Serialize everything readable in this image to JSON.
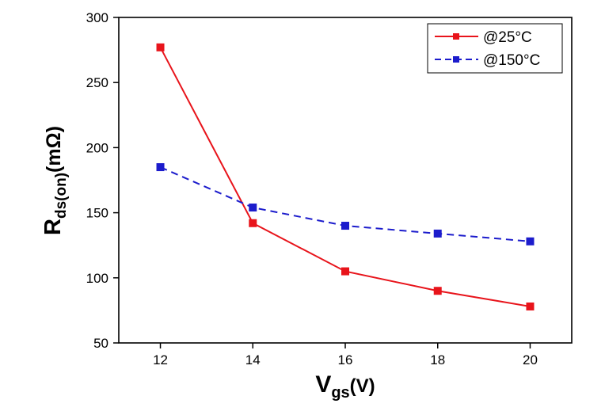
{
  "chart_data": {
    "type": "line",
    "title": "",
    "xlabel": {
      "main": "V",
      "sub": "gs",
      "tail": "(V)"
    },
    "ylabel": {
      "main": "R",
      "sub": "ds(on)",
      "tail": "(mΩ)"
    },
    "x": [
      12,
      14,
      16,
      18,
      20
    ],
    "xlim": [
      11.1,
      20.9
    ],
    "ylim": [
      50,
      300
    ],
    "xticks": [
      12,
      14,
      16,
      18,
      20
    ],
    "yticks": [
      50,
      100,
      150,
      200,
      250,
      300
    ],
    "grid": false,
    "legend_position": "top-right",
    "series": [
      {
        "name": "@25°C",
        "values": [
          277,
          142,
          105,
          90,
          78
        ],
        "color": "#e8141b",
        "line_style": "solid",
        "marker": "square"
      },
      {
        "name": "@150°C",
        "values": [
          185,
          154,
          140,
          134,
          128
        ],
        "color": "#1c1ccc",
        "line_style": "dashed",
        "marker": "square"
      }
    ]
  }
}
